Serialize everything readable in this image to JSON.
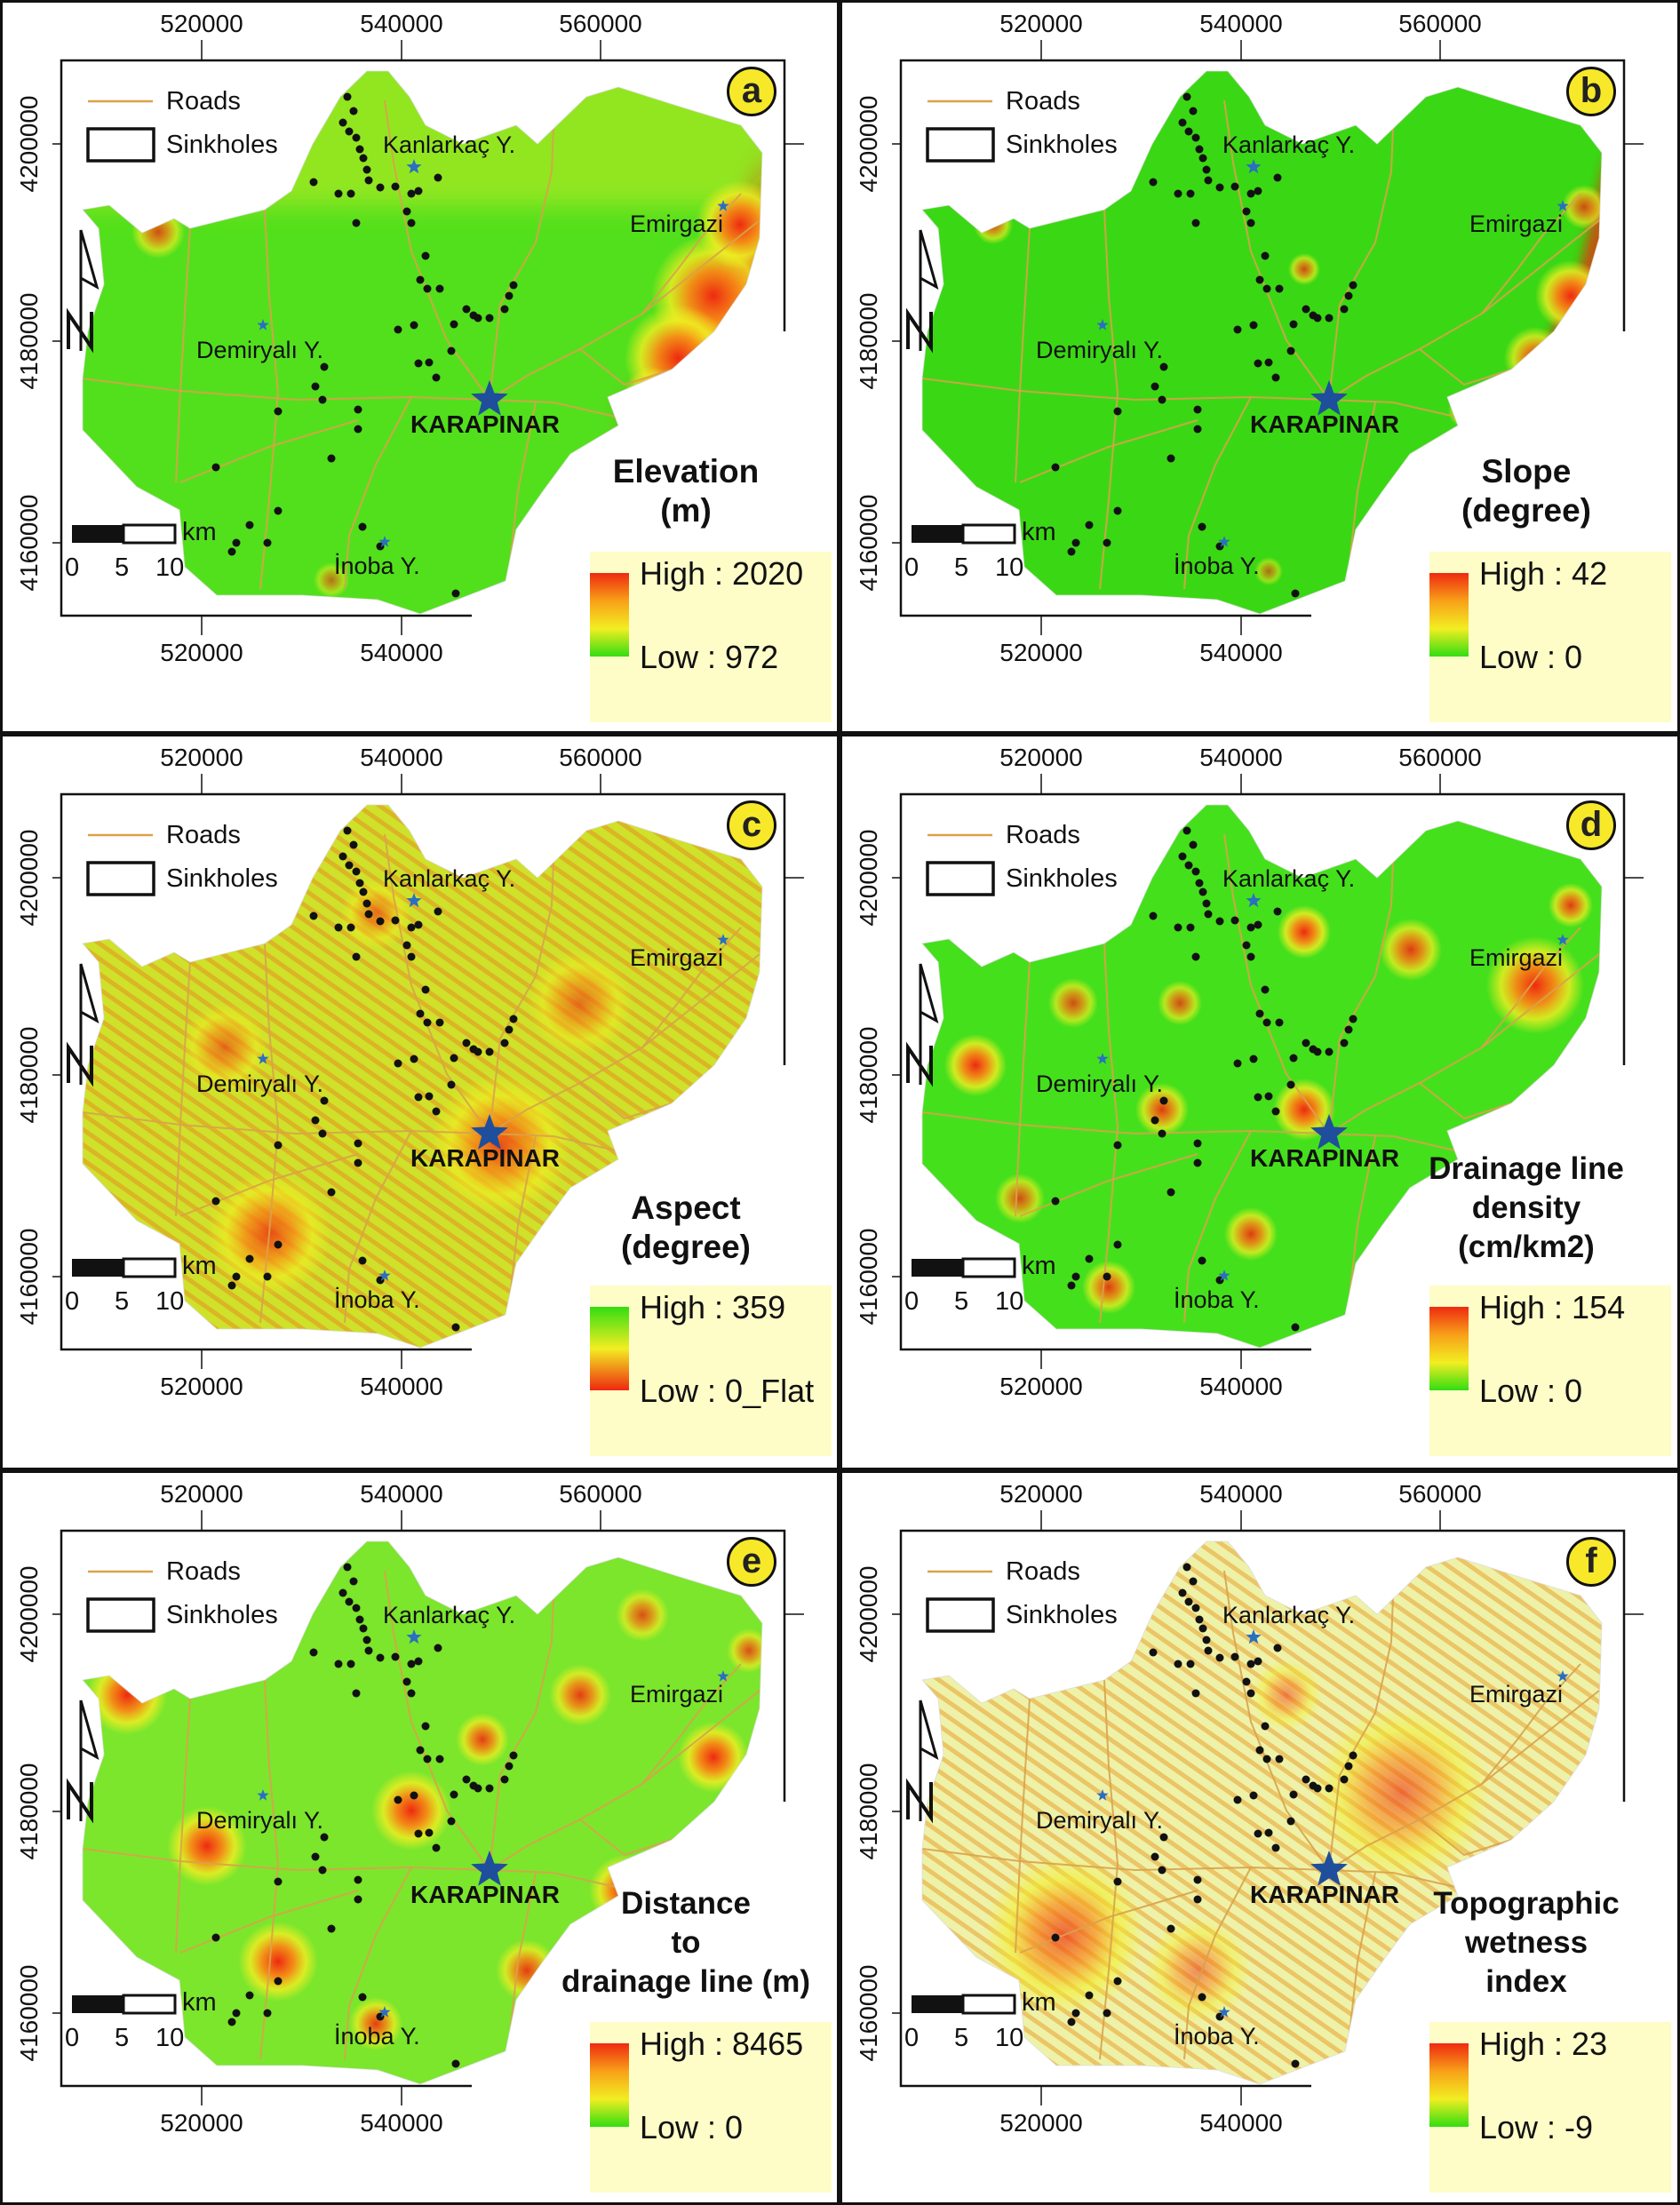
{
  "figure": {
    "x_ticks": [
      "520000",
      "540000",
      "560000"
    ],
    "x_ticks_bottom": [
      "520000",
      "540000"
    ],
    "y_ticks": [
      "4200000",
      "4180000",
      "4160000"
    ],
    "legend": {
      "roads": "Roads",
      "sinkholes": "Sinkholes"
    },
    "scale_bar": {
      "unit": "km",
      "labels": [
        "0",
        "5",
        "10"
      ]
    },
    "places": {
      "kanlarkac": "Kanlarkaç Y.",
      "emirgazi": "Emirgazi",
      "demiryali": "Demiryalı Y.",
      "karapinar": "KARAPINAR",
      "inoba": "İnoba Y."
    },
    "colors": {
      "road": "#d9a24a",
      "badge": "#f7e92a",
      "legend_bg": "#fefdc8",
      "star": "#1f4e9c",
      "high": "#ee2a10",
      "mid": "#f2ee22",
      "low": "#33dd11"
    },
    "icons": {
      "north_arrow": "north-arrow-icon",
      "place_marker": "star-icon"
    }
  },
  "panels": [
    {
      "letter": "a",
      "title": [
        "Elevation",
        "(m)"
      ],
      "high": "High : 2020",
      "low": "Low : 972",
      "ramp": "high-top",
      "style": "elevation"
    },
    {
      "letter": "b",
      "title": [
        "Slope",
        "(degree)"
      ],
      "high": "High : 42",
      "low": "Low : 0",
      "ramp": "high-top",
      "style": "slope"
    },
    {
      "letter": "c",
      "title": [
        "Aspect",
        "(degree)"
      ],
      "high": "High : 359",
      "low": "Low : 0_Flat",
      "ramp": "green-top",
      "style": "aspect"
    },
    {
      "letter": "d",
      "title": [
        "Drainage line",
        "density",
        "(cm/km2)"
      ],
      "high": "High : 154",
      "low": "Low : 0",
      "ramp": "high-top",
      "style": "density"
    },
    {
      "letter": "e",
      "title": [
        "Distance",
        "to",
        "drainage line (m)"
      ],
      "high": "High : 8465",
      "low": "Low : 0",
      "ramp": "high-top",
      "style": "distance"
    },
    {
      "letter": "f",
      "title": [
        "Topographic",
        "wetness",
        "index"
      ],
      "high": "High : 23",
      "low": "Low : -9",
      "ramp": "high-top",
      "style": "twi"
    }
  ]
}
